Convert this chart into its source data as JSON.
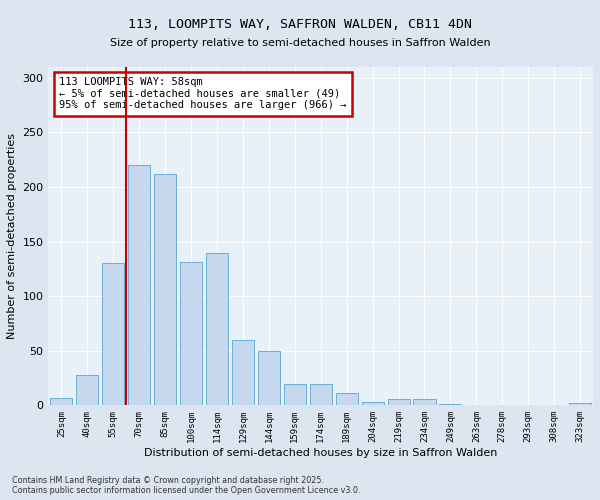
{
  "title_line1": "113, LOOMPITS WAY, SAFFRON WALDEN, CB11 4DN",
  "title_line2": "Size of property relative to semi-detached houses in Saffron Walden",
  "xlabel": "Distribution of semi-detached houses by size in Saffron Walden",
  "ylabel": "Number of semi-detached properties",
  "categories": [
    "25sqm",
    "40sqm",
    "55sqm",
    "70sqm",
    "85sqm",
    "100sqm",
    "114sqm",
    "129sqm",
    "144sqm",
    "159sqm",
    "174sqm",
    "189sqm",
    "204sqm",
    "219sqm",
    "234sqm",
    "249sqm",
    "263sqm",
    "278sqm",
    "293sqm",
    "308sqm",
    "323sqm"
  ],
  "values": [
    7,
    28,
    130,
    220,
    212,
    131,
    140,
    60,
    50,
    20,
    20,
    11,
    3,
    6,
    6,
    1,
    0,
    0,
    0,
    0,
    2
  ],
  "bar_color": "#c5d8ee",
  "bar_edge_color": "#6aaed6",
  "vline_color": "#cc0000",
  "annotation_title": "113 LOOMPITS WAY: 58sqm",
  "annotation_line1": "← 5% of semi-detached houses are smaller (49)",
  "annotation_line2": "95% of semi-detached houses are larger (966) →",
  "annotation_box_color": "#cc0000",
  "ylim": [
    0,
    310
  ],
  "yticks": [
    0,
    50,
    100,
    150,
    200,
    250,
    300
  ],
  "footer_line1": "Contains HM Land Registry data © Crown copyright and database right 2025.",
  "footer_line2": "Contains public sector information licensed under the Open Government Licence v3.0.",
  "bg_color": "#dde6f0",
  "plot_bg_color": "#e8f0f8",
  "grid_color": "#ffffff"
}
